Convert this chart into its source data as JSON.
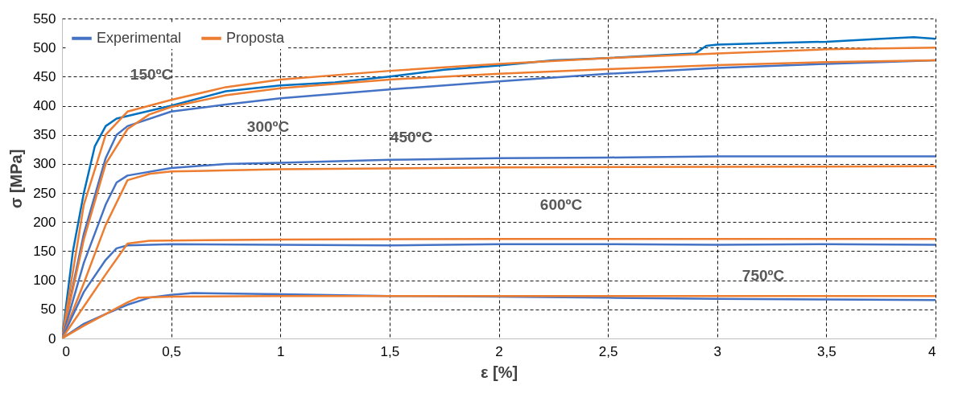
{
  "chart_data": {
    "type": "line",
    "xlabel": "ε [%]",
    "ylabel": "σ [MPa]",
    "xlim": [
      0,
      4
    ],
    "ylim": [
      0,
      550
    ],
    "xticks": [
      {
        "value": 0,
        "label": "0"
      },
      {
        "value": 0.5,
        "label": "0,5"
      },
      {
        "value": 1,
        "label": "1"
      },
      {
        "value": 1.5,
        "label": "1,5"
      },
      {
        "value": 2,
        "label": "2"
      },
      {
        "value": 2.5,
        "label": "2,5"
      },
      {
        "value": 3,
        "label": "3"
      },
      {
        "value": 3.5,
        "label": "3,5"
      },
      {
        "value": 4,
        "label": "4"
      }
    ],
    "yticks": [
      0,
      50,
      100,
      150,
      200,
      250,
      300,
      350,
      400,
      450,
      500,
      550
    ],
    "grid": true,
    "legend": "top left",
    "line_style": "solid",
    "marker": "none",
    "annotations": [
      "150ºC",
      "300ºC",
      "450ºC",
      "600ºC",
      "750ºC"
    ],
    "series": [
      {
        "name": "Experimental",
        "color": "#4472c4",
        "x": [
          0,
          0.1,
          0.2,
          0.25,
          0.3,
          0.5,
          0.75,
          1,
          1.5,
          2,
          2.5,
          3,
          3.5,
          4
        ],
        "values": [
          0,
          180,
          310,
          350,
          365,
          390,
          402,
          413,
          428,
          442,
          455,
          465,
          472,
          478
        ]
      },
      {
        "color": "#0070c0",
        "x": [
          0,
          0.05,
          0.1,
          0.15,
          0.2,
          0.25,
          0.5,
          0.75,
          1,
          1.25,
          1.5,
          1.75,
          2,
          2.25,
          2.5,
          2.75,
          2.9,
          2.95,
          3,
          3.25,
          3.5,
          3.75,
          3.9,
          4
        ],
        "values": [
          0,
          150,
          250,
          330,
          365,
          378,
          400,
          425,
          435,
          440,
          450,
          462,
          469,
          478,
          482,
          487,
          490,
          503,
          505,
          508,
          510,
          515,
          518,
          515
        ]
      },
      {
        "name": "Proposta",
        "color": "#ed7d31",
        "x": [
          0,
          0.1,
          0.2,
          0.3,
          0.5,
          0.75,
          1,
          1.5,
          2,
          2.5,
          3,
          3.5,
          4
        ],
        "values": [
          0,
          230,
          350,
          390,
          410,
          432,
          445,
          460,
          472,
          482,
          490,
          497,
          500
        ]
      },
      {
        "color": "#ed7d31",
        "x": [
          0,
          0.1,
          0.2,
          0.3,
          0.4,
          0.5,
          0.75,
          1,
          1.5,
          2,
          2.5,
          3,
          3.5,
          4
        ],
        "values": [
          0,
          170,
          300,
          360,
          385,
          398,
          418,
          430,
          445,
          455,
          463,
          470,
          475,
          478
        ]
      },
      {
        "color": "#4472c4",
        "x": [
          0,
          0.1,
          0.2,
          0.25,
          0.3,
          0.5,
          0.75,
          1,
          1.5,
          2,
          2.5,
          3,
          3.5,
          4
        ],
        "values": [
          0,
          130,
          230,
          268,
          280,
          293,
          300,
          302,
          307,
          310,
          311,
          313,
          313,
          313
        ]
      },
      {
        "color": "#ed7d31",
        "x": [
          0,
          0.1,
          0.2,
          0.3,
          0.4,
          0.5,
          1,
          2,
          3,
          4
        ],
        "values": [
          0,
          95,
          195,
          272,
          283,
          287,
          291,
          294,
          295,
          296
        ]
      },
      {
        "color": "#4472c4",
        "x": [
          0,
          0.05,
          0.1,
          0.2,
          0.25,
          0.3,
          0.5,
          1,
          1.5,
          2,
          2.5,
          3,
          3.5,
          4
        ],
        "values": [
          0,
          40,
          80,
          135,
          155,
          160,
          162,
          161,
          160,
          162,
          162,
          161,
          162,
          161
        ]
      },
      {
        "color": "#ed7d31",
        "x": [
          0,
          0.1,
          0.2,
          0.3,
          0.4,
          1,
          2,
          3,
          4
        ],
        "values": [
          0,
          55,
          110,
          163,
          168,
          170,
          171,
          171,
          171
        ]
      },
      {
        "color": "#4472c4",
        "x": [
          0,
          0.1,
          0.2,
          0.3,
          0.4,
          0.5,
          0.6,
          0.8,
          1,
          1.5,
          2,
          2.5,
          3,
          3.5,
          4
        ],
        "values": [
          0,
          25,
          42,
          58,
          70,
          75,
          78,
          77,
          76,
          73,
          72,
          70,
          68,
          67,
          66
        ]
      },
      {
        "color": "#ed7d31",
        "x": [
          0,
          0.1,
          0.2,
          0.3,
          0.35,
          0.5,
          1,
          2,
          3,
          4
        ],
        "values": [
          0,
          22,
          42,
          62,
          70,
          72,
          73,
          73,
          73,
          73
        ]
      }
    ]
  }
}
